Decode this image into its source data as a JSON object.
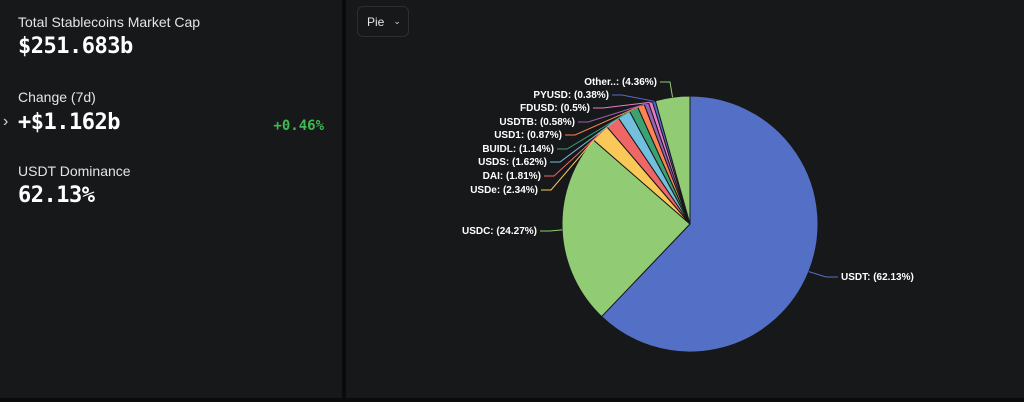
{
  "stats": {
    "market_cap": {
      "label": "Total Stablecoins Market Cap",
      "value": "$251.683b"
    },
    "change": {
      "label": "Change (7d)",
      "value": "+$1.162b",
      "percent": "+0.46%",
      "percent_color": "#3fb950"
    },
    "dominance": {
      "label": "USDT Dominance",
      "value": "62.13%"
    }
  },
  "chart_controls": {
    "type_label": "Pie"
  },
  "chart_data": {
    "type": "pie",
    "slices": [
      {
        "name": "USDT",
        "value": 62.13,
        "label": "USDT: (62.13%)",
        "color": "#5470c6"
      },
      {
        "name": "USDC",
        "value": 24.27,
        "label": "USDC: (24.27%)",
        "color": "#91cc75"
      },
      {
        "name": "USDe",
        "value": 2.34,
        "label": "USDe: (2.34%)",
        "color": "#fac858"
      },
      {
        "name": "DAI",
        "value": 1.81,
        "label": "DAI: (1.81%)",
        "color": "#ee6666"
      },
      {
        "name": "USDS",
        "value": 1.62,
        "label": "USDS: (1.62%)",
        "color": "#73c0de"
      },
      {
        "name": "BUIDL",
        "value": 1.14,
        "label": "BUIDL: (1.14%)",
        "color": "#3ba272"
      },
      {
        "name": "USD1",
        "value": 0.87,
        "label": "USD1: (0.87%)",
        "color": "#fc8452"
      },
      {
        "name": "USDTB",
        "value": 0.58,
        "label": "USDTB: (0.58%)",
        "color": "#9a60b4"
      },
      {
        "name": "FDUSD",
        "value": 0.5,
        "label": "FDUSD: (0.5%)",
        "color": "#ea7ccc"
      },
      {
        "name": "PYUSD",
        "value": 0.38,
        "label": "PYUSD: (0.38%)",
        "color": "#5470c6"
      },
      {
        "name": "Other..",
        "value": 4.36,
        "label": "Other..: (4.36%)",
        "color": "#91cc75"
      }
    ]
  }
}
